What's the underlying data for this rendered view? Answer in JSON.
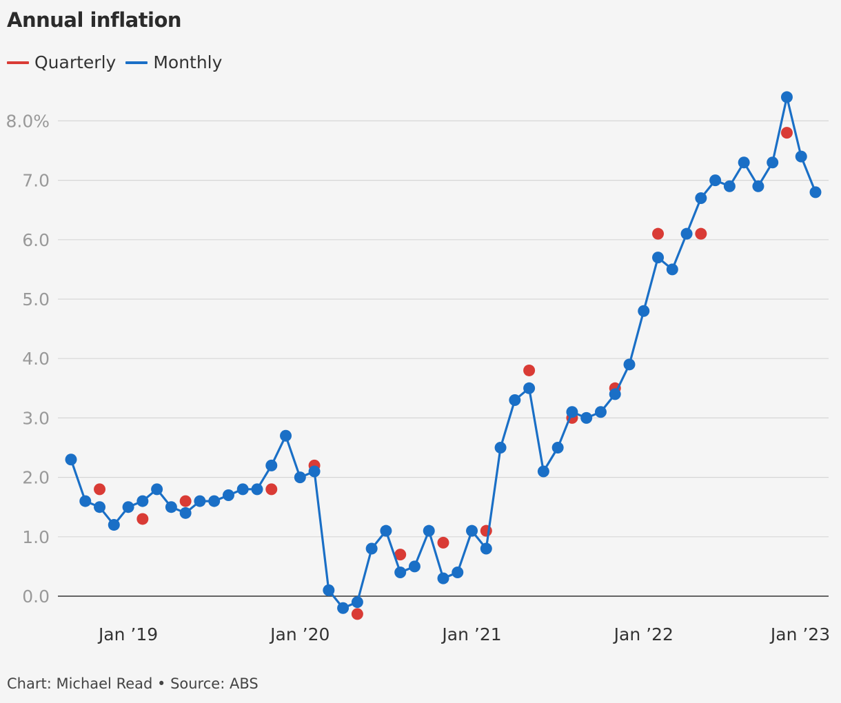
{
  "title": "Annual inflation",
  "footer": "Chart: Michael Read • Source: ABS",
  "legend": [
    {
      "label": "Quarterly",
      "color": "#d93b35"
    },
    {
      "label": "Monthly",
      "color": "#1a6fc6"
    }
  ],
  "chart_data": {
    "type": "line",
    "title": "Annual inflation",
    "ylim": [
      -0.35,
      8.6
    ],
    "y_ticks": [
      {
        "value": 8,
        "label": "8.0%"
      },
      {
        "value": 7,
        "label": "7.0"
      },
      {
        "value": 6,
        "label": "6.0"
      },
      {
        "value": 5,
        "label": "5.0"
      },
      {
        "value": 4,
        "label": "4.0"
      },
      {
        "value": 3,
        "label": "3.0"
      },
      {
        "value": 2,
        "label": "2.0"
      },
      {
        "value": 1,
        "label": "1.0"
      },
      {
        "value": 0,
        "label": "0.0"
      }
    ],
    "x_range": [
      "2018-09",
      "2023-01"
    ],
    "x_ticks": [
      {
        "month": "2019-01",
        "label": "Jan ’19"
      },
      {
        "month": "2020-01",
        "label": "Jan ’20"
      },
      {
        "month": "2021-01",
        "label": "Jan ’21"
      },
      {
        "month": "2022-01",
        "label": "Jan ’22"
      },
      {
        "month": "2023-01",
        "label": "Jan ’23"
      }
    ],
    "grid": true,
    "legend_position": "top-left",
    "series": [
      {
        "name": "Monthly",
        "color": "#1a6fc6",
        "style": "line-with-markers",
        "points": [
          [
            "2018-09",
            2.3
          ],
          [
            "2018-10",
            1.6
          ],
          [
            "2018-11",
            1.5
          ],
          [
            "2018-12",
            1.2
          ],
          [
            "2019-01",
            1.5
          ],
          [
            "2019-02",
            1.6
          ],
          [
            "2019-03",
            1.8
          ],
          [
            "2019-04",
            1.5
          ],
          [
            "2019-05",
            1.4
          ],
          [
            "2019-06",
            1.6
          ],
          [
            "2019-07",
            1.6
          ],
          [
            "2019-08",
            1.7
          ],
          [
            "2019-09",
            1.8
          ],
          [
            "2019-10",
            1.8
          ],
          [
            "2019-11",
            2.2
          ],
          [
            "2019-12",
            2.7
          ],
          [
            "2020-01",
            2.0
          ],
          [
            "2020-02",
            2.1
          ],
          [
            "2020-03",
            0.1
          ],
          [
            "2020-04",
            -0.2
          ],
          [
            "2020-05",
            -0.1
          ],
          [
            "2020-06",
            0.8
          ],
          [
            "2020-07",
            1.1
          ],
          [
            "2020-08",
            0.4
          ],
          [
            "2020-09",
            0.5
          ],
          [
            "2020-10",
            1.1
          ],
          [
            "2020-11",
            0.3
          ],
          [
            "2020-12",
            0.4
          ],
          [
            "2021-01",
            1.1
          ],
          [
            "2021-02",
            0.8
          ],
          [
            "2021-03",
            2.5
          ],
          [
            "2021-04",
            3.3
          ],
          [
            "2021-05",
            3.5
          ],
          [
            "2021-06",
            2.1
          ],
          [
            "2021-07",
            2.5
          ],
          [
            "2021-08",
            3.1
          ],
          [
            "2021-09",
            3.0
          ],
          [
            "2021-10",
            3.1
          ],
          [
            "2021-11",
            3.4
          ],
          [
            "2021-12",
            3.9
          ],
          [
            "2022-01",
            4.8
          ],
          [
            "2022-02",
            5.7
          ],
          [
            "2022-03",
            5.5
          ],
          [
            "2022-04",
            6.1
          ],
          [
            "2022-05",
            6.7
          ],
          [
            "2022-06",
            7.0
          ],
          [
            "2022-07",
            6.9
          ],
          [
            "2022-08",
            7.3
          ],
          [
            "2022-09",
            6.9
          ],
          [
            "2022-10",
            7.3
          ],
          [
            "2022-11",
            8.4
          ],
          [
            "2022-12",
            7.4
          ],
          [
            "2023-01",
            6.8
          ]
        ]
      },
      {
        "name": "Quarterly",
        "color": "#d93b35",
        "style": "markers",
        "points": [
          [
            "2018-11",
            1.8
          ],
          [
            "2019-02",
            1.3
          ],
          [
            "2019-05",
            1.6
          ],
          [
            "2019-11",
            1.8
          ],
          [
            "2020-02",
            2.2
          ],
          [
            "2020-05",
            -0.3
          ],
          [
            "2020-08",
            0.7
          ],
          [
            "2020-11",
            0.9
          ],
          [
            "2021-02",
            1.1
          ],
          [
            "2021-05",
            3.8
          ],
          [
            "2021-08",
            3.0
          ],
          [
            "2021-11",
            3.5
          ],
          [
            "2022-02",
            6.1
          ],
          [
            "2022-05",
            6.1
          ],
          [
            "2022-11",
            7.8
          ]
        ]
      }
    ]
  }
}
